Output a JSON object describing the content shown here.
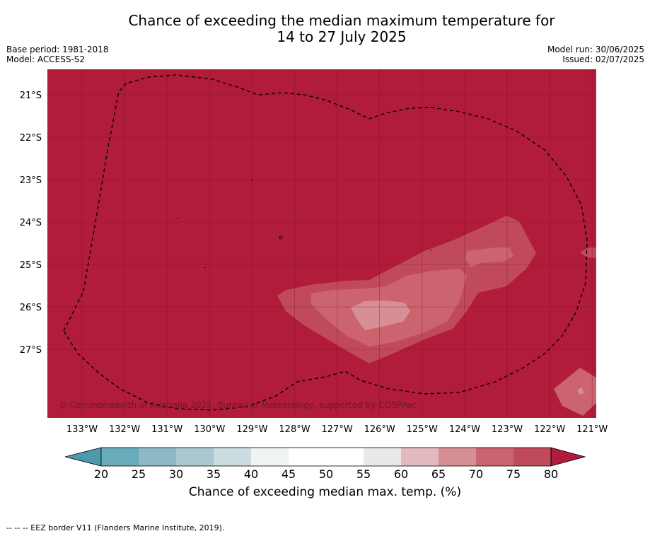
{
  "title": {
    "line1": "Chance of exceeding the median maximum temperature for",
    "line2": "14 to 27 July 2025"
  },
  "meta_left": {
    "base_period": "Base period: 1981-2018",
    "model": "Model: ACCESS-S2"
  },
  "meta_right": {
    "model_run": "Model run: 30/06/2025",
    "issued": "Issued: 02/07/2025"
  },
  "map": {
    "lat_labels": [
      "21°S",
      "22°S",
      "23°S",
      "24°S",
      "25°S",
      "26°S",
      "27°S"
    ],
    "lon_labels": [
      "133°W",
      "132°W",
      "131°W",
      "130°W",
      "129°W",
      "128°W",
      "127°W",
      "126°W",
      "125°W",
      "124°W",
      "123°W",
      "122°W",
      "121°W"
    ],
    "copyright": "© Commonwealth of Australia 2025, Bureau of Meteorology, supported by COSPPac",
    "background_class": ">80",
    "colors": {
      "c80plus": "#b01c3a",
      "c75_80": "#c14a5a",
      "c70_75": "#cc6470",
      "c65_70": "#d78f96",
      "c60_65": "#e2b9bd"
    }
  },
  "colorbar": {
    "ticks": [
      "20",
      "25",
      "30",
      "35",
      "40",
      "45",
      "50",
      "55",
      "60",
      "65",
      "70",
      "75",
      "80"
    ],
    "colors": [
      "#6aabbb",
      "#8db9c4",
      "#aac9ce",
      "#cbdbdf",
      "#eef3f4",
      "#ffffff",
      "#ffffff",
      "#e9e9ea",
      "#e2b9bd",
      "#d78f96",
      "#cc6470",
      "#c14a5a"
    ],
    "low_extend_color": "#4c9aab",
    "high_extend_color": "#b01c3a",
    "label": "Chance of exceeding median max. temp. (%)"
  },
  "footer": {
    "eez_note": "--  --  -- EEZ border V11 (Flanders Marine Institute, 2019)."
  }
}
